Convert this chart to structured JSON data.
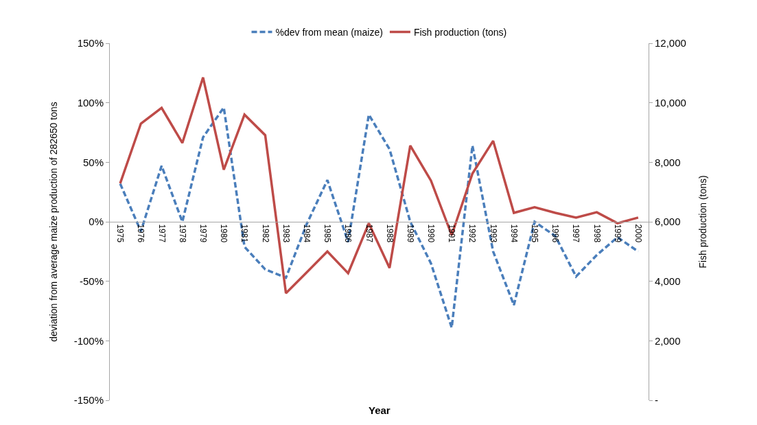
{
  "chart_data": {
    "type": "line",
    "xlabel": "Year",
    "ylabel": "deviation from average maize production of 282650 tons",
    "y2label": "Fish production (tons)",
    "categories": [
      "1975",
      "1976",
      "1977",
      "1978",
      "1979",
      "1980",
      "1981",
      "1982",
      "1983",
      "1984",
      "1985",
      "1986",
      "1987",
      "1988",
      "1989",
      "1990",
      "1991",
      "1992",
      "1993",
      "1994",
      "1995",
      "1996",
      "1997",
      "1998",
      "1999",
      "2000"
    ],
    "series": [
      {
        "name": "%dev from mean (maize)",
        "color": "#4a7ebb",
        "line_style": "dashed",
        "values": [
          32,
          -8,
          47,
          0,
          71,
          96,
          -21,
          -40,
          -47,
          -2,
          35,
          -17,
          90,
          61,
          0,
          -35,
          -89,
          64,
          -25,
          -70,
          0,
          -12,
          -46,
          -28,
          -13,
          -25
        ]
      },
      {
        "name": "Fish production (tons)",
        "color": "#be4b48",
        "line_style": "solid",
        "axis": "y2",
        "values": [
          7290,
          9300,
          9830,
          8650,
          10850,
          7750,
          9600,
          8910,
          3600,
          4300,
          5000,
          4270,
          5950,
          4450,
          8560,
          7380,
          5550,
          7620,
          8720,
          6300,
          6490,
          6300,
          6140,
          6320,
          5950,
          6140
        ]
      }
    ],
    "ylim": [
      -150,
      150
    ],
    "yticks": [
      {
        "value": -150,
        "label": "-150%"
      },
      {
        "value": -100,
        "label": "-100%"
      },
      {
        "value": -50,
        "label": "-50%"
      },
      {
        "value": 0,
        "label": "0%"
      },
      {
        "value": 50,
        "label": "50%"
      },
      {
        "value": 100,
        "label": "100%"
      },
      {
        "value": 150,
        "label": "150%"
      }
    ],
    "y2lim": [
      0,
      12000
    ],
    "y2ticks": [
      {
        "value": 0,
        "label": "-"
      },
      {
        "value": 2000,
        "label": "2,000"
      },
      {
        "value": 4000,
        "label": "4,000"
      },
      {
        "value": 6000,
        "label": "6,000"
      },
      {
        "value": 8000,
        "label": "8,000"
      },
      {
        "value": 10000,
        "label": "10,000"
      },
      {
        "value": 12000,
        "label": "12,000"
      }
    ],
    "legend": "top",
    "marker": "none"
  }
}
